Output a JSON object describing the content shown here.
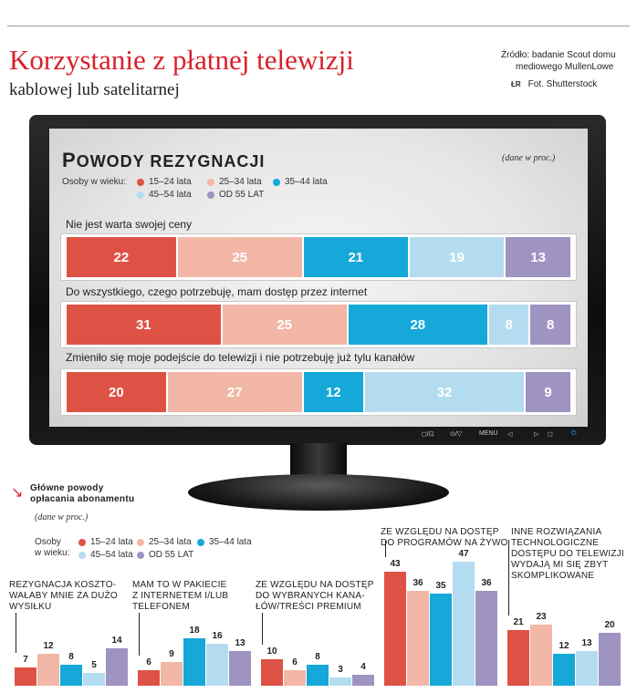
{
  "header": {
    "title": "Korzystanie z płatnej telewizji",
    "subtitle": "kablowej lub satelitarnej",
    "source_line1": "Źródło: badanie Scout domu",
    "source_line2": "mediowego MullenLowe",
    "photo_tag": "ŁR",
    "photo_credit": "Fot. Shutterstock"
  },
  "monitor": {
    "controls": [
      "◻/⊡",
      "⊙/▽",
      "MENU",
      "◁",
      "▷",
      "◻",
      "⏻"
    ],
    "title_first": "P",
    "title_rest": "OWODY REZYGNACJI",
    "note": "(dane w proc.)",
    "legend_label": "Osoby w wieku:",
    "legend": [
      "15–24 lata",
      "25–34 lata",
      "35–44 lata",
      "45–54 lata",
      "OD 55 LAT"
    ]
  },
  "bottom": {
    "title_line1": "Główne powody",
    "title_line2": "opłacania abonamentu",
    "note": "(dane w proc.)",
    "legend_label_1": "Osoby",
    "legend_label_2": "w wieku:",
    "legend": [
      "15–24 lata",
      "25–34 lata",
      "35–44 lata",
      "45–54 lata",
      "OD 55 LAT"
    ]
  },
  "colors": [
    "#de5245",
    "#f2b7a6",
    "#15a8d8",
    "#b4dcf0",
    "#9e93c1"
  ],
  "chart_data": [
    {
      "type": "bar",
      "stacked": true,
      "orientation": "horizontal",
      "title": "Powody rezygnacji",
      "subtitle": "(dane w proc.)",
      "series_names": [
        "15–24 lata",
        "25–34 lata",
        "35–44 lata",
        "45–54 lata",
        "OD 55 LAT"
      ],
      "categories": [
        "Nie jest warta swojej ceny",
        "Do wszystkiego, czego potrzebuję, mam dostęp przez internet",
        "Zmieniło się moje podejście do telewizji i nie potrzebuję już tylu kanałów"
      ],
      "values": [
        [
          22,
          25,
          21,
          19,
          13
        ],
        [
          31,
          25,
          28,
          8,
          8
        ],
        [
          20,
          27,
          12,
          32,
          9
        ]
      ]
    },
    {
      "type": "bar",
      "title": "Główne powody opłacania abonamentu",
      "subtitle": "(dane w proc.)",
      "series_names": [
        "15–24 lata",
        "25–34 lata",
        "35–44 lata",
        "45–54 lata",
        "OD 55 LAT"
      ],
      "categories": [
        "REZYGNACJA KOSZTO-WAŁABY MNIE ZA DUŻO WYSIŁKU",
        "MAM TO W PAKIECIE Z INTERNETEM I/LUB TELEFONEM",
        "ZE WZGLĘDU NA DOSTĘP DO WYBRANYCH KANA-ŁÓW/TREŚCI PREMIUM",
        "ZE WZGLĘDU NA DOSTĘP DO PROGRAMÓW NA ŻYWO",
        "INNE ROZWIĄZANIA TECHNOLOGICZNE DOSTĘPU DO TELEWIZJI WYDAJĄ MI SIĘ ZBYT SKOMPLIKOWANE"
      ],
      "category_lines": [
        [
          "REZYGNACJA KOSZTO-",
          "WAŁABY MNIE ZA DUŻO",
          "WYSIŁKU"
        ],
        [
          "MAM TO W PAKIECIE",
          "Z INTERNETEM I/LUB",
          "TELEFONEM"
        ],
        [
          "ZE WZGLĘDU NA DOSTĘP",
          "DO WYBRANYCH KANA-",
          "ŁÓW/TREŚCI PREMIUM"
        ],
        [
          "ZE WZGLĘDU NA DOSTĘP",
          "DO PROGRAMÓW NA ŻYWO"
        ],
        [
          "INNE ROZWIĄZANIA",
          "TECHNOLOGICZNE",
          "DOSTĘPU DO TELEWIZJI",
          "WYDAJĄ MI SIĘ ZBYT",
          "SKOMPLIKOWANE"
        ]
      ],
      "values": [
        [
          7,
          12,
          8,
          5,
          14
        ],
        [
          6,
          9,
          18,
          16,
          13
        ],
        [
          10,
          6,
          8,
          3,
          4
        ],
        [
          43,
          36,
          35,
          47,
          36
        ],
        [
          21,
          23,
          12,
          13,
          20
        ]
      ]
    }
  ]
}
